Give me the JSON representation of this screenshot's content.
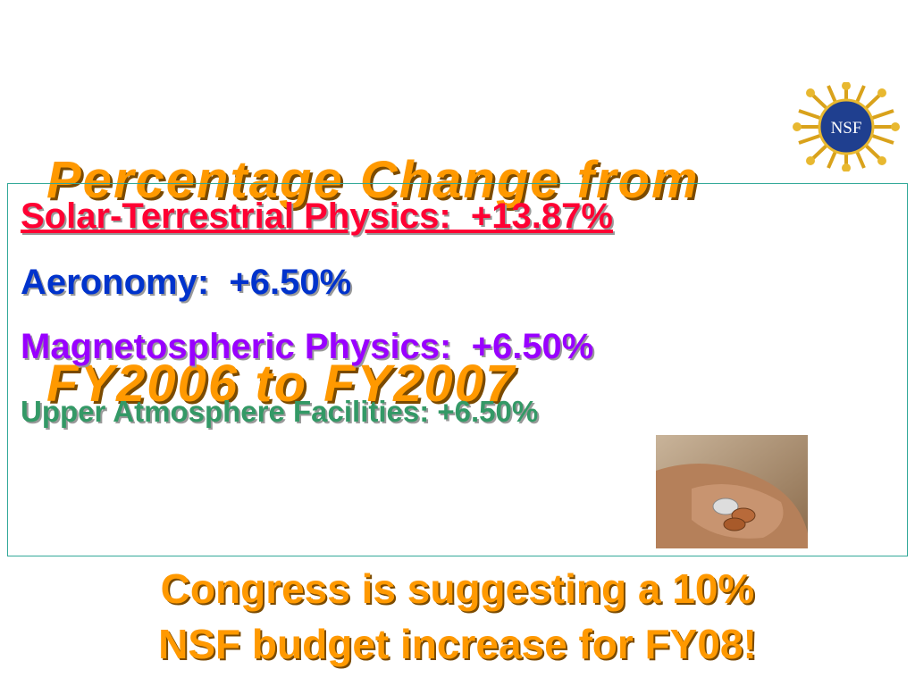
{
  "title": {
    "lines": [
      "Percentage Change from",
      "FY2006 to FY2007"
    ]
  },
  "logo": {
    "text": "NSF"
  },
  "items": [
    {
      "text": "Solar-Terrestrial Physics:  +13.87%"
    },
    {
      "text": "Aeronomy:  +6.50%"
    },
    {
      "text": "Magnetospheric Physics:  +6.50%"
    },
    {
      "text": "Upper Atmosphere Facilities: +6.50%"
    }
  ],
  "footer": {
    "lines": [
      "Congress is suggesting a 10%",
      "NSF budget increase for FY08!"
    ]
  }
}
